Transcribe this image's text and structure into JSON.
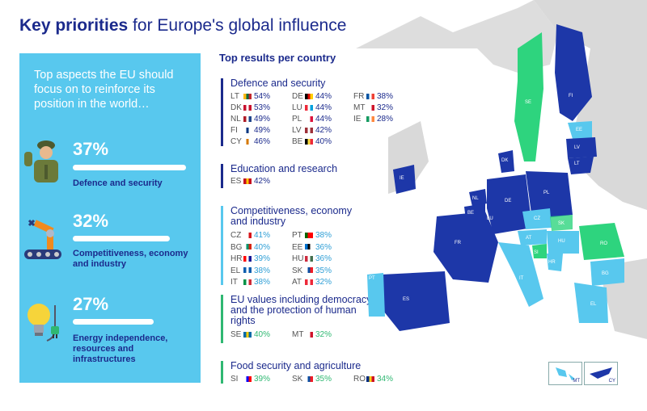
{
  "title_bold": "Key priorities",
  "title_rest": " for Europe's global influence",
  "intro": "Top aspects the EU should focus on to reinforce its position in the world…",
  "priorities": [
    {
      "pct": "37%",
      "label": "Defence and security",
      "value": 37
    },
    {
      "pct": "32%",
      "label": "Competitiveness, economy and industry",
      "value": 32
    },
    {
      "pct": "27%",
      "label": "Energy independence, resources and infrastructures",
      "value": 27
    }
  ],
  "results_title": "Top results per country",
  "sections": {
    "defence": {
      "title": "Defence and security",
      "rows": [
        [
          "LT",
          "54%"
        ],
        [
          "DE",
          "44%"
        ],
        [
          "FR",
          "38%"
        ],
        [
          "DK",
          "53%"
        ],
        [
          "LU",
          "44%"
        ],
        [
          "MT",
          "32%"
        ],
        [
          "NL",
          "49%"
        ],
        [
          "PL",
          "44%"
        ],
        [
          "IE",
          "28%"
        ],
        [
          "FI",
          "49%"
        ],
        [
          "LV",
          "42%"
        ],
        [
          "CY",
          "46%"
        ],
        [
          "BE",
          "40%"
        ]
      ]
    },
    "education": {
      "title": "Education and research",
      "rows": [
        [
          "ES",
          "42%"
        ]
      ]
    },
    "competitiveness": {
      "title": "Competitiveness, economy and industry",
      "rows": [
        [
          "CZ",
          "41%"
        ],
        [
          "PT",
          "38%"
        ],
        [
          "BG",
          "40%"
        ],
        [
          "EE",
          "36%"
        ],
        [
          "HR",
          "39%"
        ],
        [
          "HU",
          "36%"
        ],
        [
          "EL",
          "38%"
        ],
        [
          "SK",
          "35%"
        ],
        [
          "IT",
          "38%"
        ],
        [
          "AT",
          "32%"
        ]
      ]
    },
    "values": {
      "title": "EU values including democracy and the protection of human rights",
      "rows": [
        [
          "SE",
          "40%"
        ],
        [
          "MT",
          "32%"
        ]
      ]
    },
    "food": {
      "title": "Food security and agriculture",
      "rows": [
        [
          "SI",
          "39%"
        ],
        [
          "SK",
          "35%"
        ],
        [
          "RO",
          "34%"
        ]
      ]
    }
  },
  "map_labels": [
    "FI",
    "SE",
    "EE",
    "LV",
    "LT",
    "DK",
    "IE",
    "NL",
    "DE",
    "PL",
    "BE",
    "LU",
    "CZ",
    "SK",
    "FR",
    "AT",
    "HU",
    "RO",
    "SI",
    "HR",
    "IT",
    "BG",
    "PT",
    "ES",
    "EL"
  ],
  "inset_labels": [
    "MT",
    "CY"
  ],
  "colors": {
    "dark": "#1b2a8c",
    "light": "#58c8ee",
    "green": "#2fb872",
    "nonEU": "#d9d9d9"
  }
}
